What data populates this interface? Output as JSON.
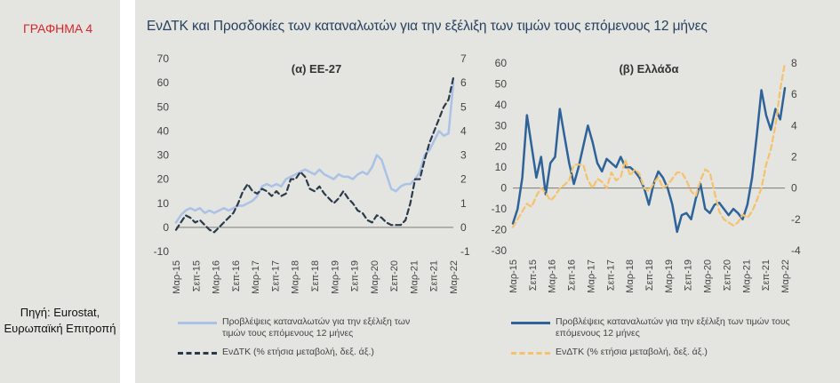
{
  "figure_label": "ΓΡΑΦΗΜΑ 4",
  "title": "ΕνΔΤΚ και Προσδοκίες των καταναλωτών για την εξέλιξη των τιμών τους επόμενους 12 μήνες",
  "source": "Πηγή: Eurostat, Ευρωπαϊκή Επιτροπή",
  "colors": {
    "title": "#27415f",
    "figure_label": "#d8262c",
    "panel_bg": "#e4e4e0",
    "eu_expectations": "#a9c2e6",
    "eu_hicp": "#2b3a4a",
    "gr_expectations": "#2e6399",
    "gr_hicp": "#f5c26b"
  },
  "chart_data": [
    {
      "type": "line",
      "title": "(α) ΕΕ-27",
      "x_tick_labels": [
        "Μαρ-15",
        "Σεπ-15",
        "Μαρ-16",
        "Σεπ-16",
        "Μαρ-17",
        "Σεπ-17",
        "Μαρ-18",
        "Σεπ-18",
        "Μαρ-19",
        "Σεπ-19",
        "Μαρ-20",
        "Σεπ-20",
        "Μαρ-21",
        "Σεπ-21",
        "Μαρ-22"
      ],
      "x_range": [
        "2015-03",
        "2022-03"
      ],
      "ylim_left": [
        -10,
        70
      ],
      "yticks_left": [
        "70",
        "60",
        "50",
        "40",
        "30",
        "20",
        "10",
        "0",
        "-10"
      ],
      "ylim_right": [
        -1,
        7
      ],
      "yticks_right": [
        "7",
        "6",
        "5",
        "4",
        "3",
        "2",
        "1",
        "0",
        "-1"
      ],
      "legend_position": "bottom",
      "series": [
        {
          "name": "Προβλέψεις καταναλωτών για την εξέλιξη των τιμών τους επόμενους 12 μήνες",
          "axis": "left",
          "style": "solid",
          "values": [
            2,
            5,
            7,
            8,
            7,
            8,
            6,
            7,
            6,
            7,
            8,
            7,
            8,
            9,
            9,
            10,
            11,
            13,
            17,
            18,
            17,
            18,
            17,
            20,
            21,
            22,
            23,
            24,
            23,
            22,
            24,
            22,
            21,
            20,
            22,
            21,
            21,
            20,
            22,
            23,
            22,
            25,
            30,
            28,
            22,
            16,
            15,
            17,
            18,
            18,
            20,
            23,
            30,
            32,
            36,
            40,
            38,
            39,
            60
          ]
        },
        {
          "name": "ΕνΔΤΚ (% ετήσια μεταβολή, δεξ. άξ.)",
          "axis": "right",
          "style": "dashed",
          "values": [
            -0.1,
            0.2,
            0.5,
            0.4,
            0.2,
            0.3,
            0.1,
            -0.1,
            -0.2,
            0.0,
            0.2,
            0.4,
            0.6,
            1.0,
            1.5,
            1.8,
            1.5,
            1.4,
            1.6,
            1.5,
            1.3,
            1.5,
            1.3,
            1.4,
            2.0,
            2.0,
            2.3,
            2.1,
            1.6,
            1.5,
            1.7,
            1.4,
            1.2,
            1.0,
            1.2,
            1.5,
            1.2,
            1.0,
            0.7,
            0.6,
            0.3,
            0.2,
            0.5,
            0.4,
            0.2,
            0.1,
            0.1,
            0.1,
            0.3,
            1.0,
            2.0,
            2.0,
            2.8,
            3.5,
            4.0,
            4.5,
            5.0,
            5.3,
            6.2
          ]
        }
      ]
    },
    {
      "type": "line",
      "title": "(β) Ελλάδα",
      "x_tick_labels": [
        "Μαρ-15",
        "Σεπ-15",
        "Μαρ-16",
        "Σεπ-16",
        "Μαρ-17",
        "Σεπ-17",
        "Μαρ-18",
        "Σεπ-18",
        "Μαρ-19",
        "Σεπ-19",
        "Μαρ-20",
        "Σεπ-20",
        "Μαρ-21",
        "Σεπ-21",
        "Μαρ-22"
      ],
      "x_range": [
        "2015-03",
        "2022-03"
      ],
      "ylim_left": [
        -30,
        60
      ],
      "yticks_left": [
        "60",
        "50",
        "40",
        "30",
        "20",
        "10",
        "0",
        "-10",
        "-20",
        "-30"
      ],
      "ylim_right": [
        -4,
        8
      ],
      "yticks_right": [
        "8",
        "6",
        "4",
        "2",
        "0",
        "-2",
        "-4"
      ],
      "legend_position": "bottom",
      "series": [
        {
          "name": "Προβλέψεις καταναλωτών για την εξέλιξη των τιμών τους επόμενους 12 μήνες",
          "axis": "left",
          "style": "solid",
          "values": [
            -17,
            -10,
            5,
            35,
            20,
            5,
            15,
            -3,
            12,
            15,
            38,
            25,
            12,
            2,
            10,
            20,
            30,
            22,
            12,
            8,
            14,
            12,
            10,
            15,
            10,
            10,
            8,
            5,
            0,
            -8,
            2,
            8,
            5,
            0,
            -8,
            -21,
            -13,
            -12,
            -15,
            -5,
            2,
            -10,
            -12,
            -8,
            -7,
            -10,
            -13,
            -10,
            -12,
            -15,
            -8,
            5,
            25,
            47,
            35,
            28,
            38,
            33,
            48
          ]
        },
        {
          "name": "ΕνΔΤΚ (% ετήσια μεταβολή, δεξ. άξ.)",
          "axis": "right",
          "style": "dashed",
          "values": [
            -2.5,
            -2.0,
            -1.5,
            -1.0,
            -1.2,
            -0.5,
            0.0,
            -0.3,
            -0.8,
            -0.5,
            0.0,
            0.2,
            0.5,
            1.5,
            1.5,
            1.5,
            0.5,
            0.0,
            0.6,
            0.4,
            0.0,
            1.0,
            0.5,
            0.7,
            1.8,
            0.8,
            1.2,
            0.9,
            0.0,
            -0.2,
            0.3,
            0.7,
            0.0,
            0.2,
            0.6,
            1.0,
            1.0,
            0.5,
            -0.2,
            -0.5,
            0.5,
            1.2,
            1.0,
            -0.3,
            -1.5,
            -2.0,
            -2.2,
            -2.4,
            -2.2,
            -1.7,
            -1.9,
            -1.5,
            -0.8,
            0.0,
            1.5,
            2.5,
            4.0,
            6.3,
            8.0
          ]
        }
      ]
    }
  ]
}
